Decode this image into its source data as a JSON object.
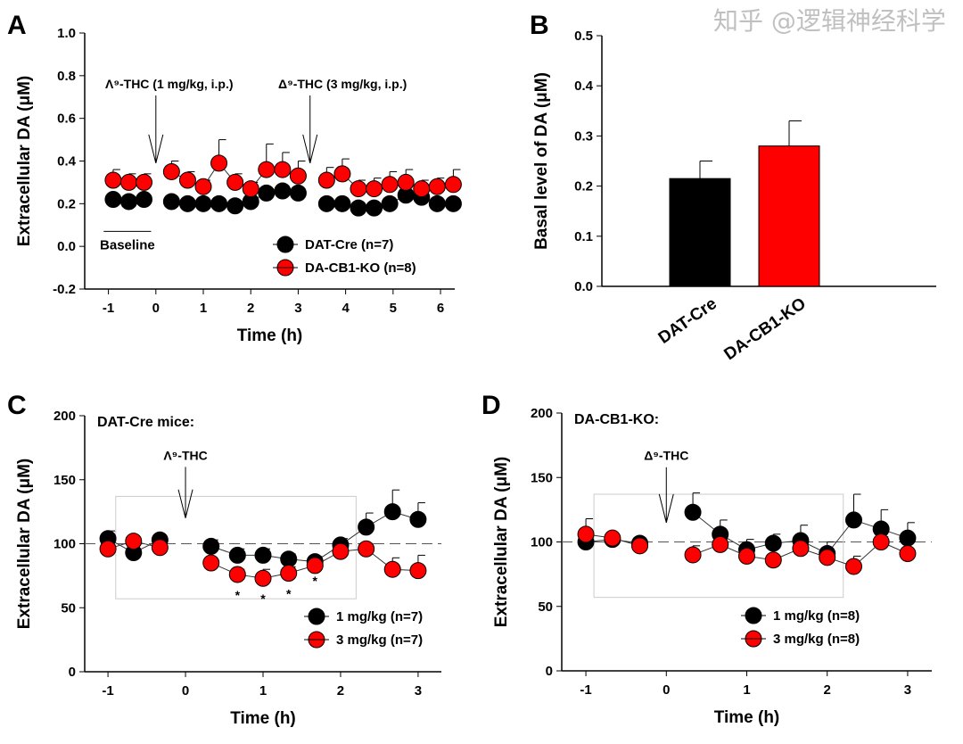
{
  "chart_data": [
    {
      "panel": "A",
      "type": "line",
      "xlabel": "Time (h)",
      "ylabel": "Extracellular DA (μM)",
      "xlim": [
        -1.5,
        6.3
      ],
      "ylim": [
        -0.2,
        1.0
      ],
      "xticks": [
        -1,
        0,
        1,
        2,
        3,
        4,
        5,
        6
      ],
      "yticks": [
        -0.2,
        0.0,
        0.2,
        0.4,
        0.6,
        0.8,
        1.0
      ],
      "annotations": [
        {
          "text": "Λ9-THC (1 mg/kg, i.p.)",
          "x": 0
        },
        {
          "text": "Δ9-THC (3 mg/kg, i.p.)",
          "x": 3.25
        },
        {
          "text": "Baseline"
        }
      ],
      "x": [
        -0.9,
        -0.57,
        -0.25,
        0.33,
        0.67,
        1,
        1.33,
        1.67,
        2,
        2.33,
        2.67,
        3,
        3.6,
        3.93,
        4.27,
        4.6,
        4.93,
        5.27,
        5.6,
        5.93,
        6.27
      ],
      "segments": [
        [
          0,
          3
        ],
        [
          3,
          12
        ],
        [
          12,
          21
        ]
      ],
      "series": [
        {
          "name": "DAT-Cre (n=7)",
          "color": "#000000",
          "values": [
            0.22,
            0.21,
            0.22,
            0.21,
            0.2,
            0.2,
            0.2,
            0.19,
            0.21,
            0.25,
            0.26,
            0.25,
            0.2,
            0.2,
            0.18,
            0.18,
            0.2,
            0.24,
            0.23,
            0.2,
            0.2
          ],
          "err": [
            0.02,
            0.02,
            0.02,
            0.02,
            0.02,
            0.02,
            0.02,
            0.02,
            0.02,
            0.02,
            0.02,
            0.02,
            0.02,
            0.02,
            0.02,
            0.02,
            0.02,
            0.02,
            0.02,
            0.02,
            0.02
          ]
        },
        {
          "name": "DA-CB1-KO (n=8)",
          "color": "#ff0000",
          "values": [
            0.31,
            0.3,
            0.3,
            0.35,
            0.31,
            0.28,
            0.39,
            0.3,
            0.27,
            0.36,
            0.36,
            0.33,
            0.31,
            0.34,
            0.27,
            0.27,
            0.29,
            0.3,
            0.27,
            0.28,
            0.29
          ],
          "err": [
            0.05,
            0.04,
            0.04,
            0.05,
            0.04,
            0.03,
            0.11,
            0.04,
            0.03,
            0.12,
            0.08,
            0.07,
            0.06,
            0.07,
            0.04,
            0.05,
            0.06,
            0.06,
            0.04,
            0.04,
            0.07
          ]
        }
      ],
      "legend": "bottom-right"
    },
    {
      "panel": "B",
      "type": "bar",
      "xlabel": "",
      "ylabel": "Basal level of DA (μM)",
      "ylim": [
        0,
        0.5
      ],
      "yticks": [
        0.0,
        0.1,
        0.2,
        0.3,
        0.4,
        0.5
      ],
      "categories": [
        "DAT-Cre",
        "DA-CB1-KO"
      ],
      "values": [
        0.215,
        0.28
      ],
      "err": [
        0.035,
        0.05
      ],
      "colors": [
        "#000000",
        "#ff0000"
      ]
    },
    {
      "panel": "C",
      "type": "line",
      "title": "DAT-Cre mice:",
      "xlabel": "Time (h)",
      "ylabel": "Extracellular DA (μM)",
      "xlim": [
        -1.3,
        3.3
      ],
      "ylim": [
        0,
        200
      ],
      "xticks": [
        -1,
        0,
        1,
        2,
        3
      ],
      "yticks": [
        0,
        50,
        100,
        150,
        200
      ],
      "annotations": [
        {
          "text": "Λ9-THC",
          "x": 0
        }
      ],
      "significance": [
        "*",
        "*",
        "*",
        "*"
      ],
      "x": [
        -1,
        -0.67,
        -0.33,
        0.33,
        0.67,
        1,
        1.33,
        1.67,
        2,
        2.33,
        2.67,
        3
      ],
      "segments": [
        [
          0,
          3
        ],
        [
          3,
          12
        ]
      ],
      "series": [
        {
          "name": "1 mg/kg (n=7)",
          "color": "#000000",
          "values": [
            104,
            93,
            103,
            98,
            91,
            91,
            88,
            86,
            99,
            113,
            125,
            119
          ],
          "err": [
            6,
            3,
            2,
            5,
            5,
            5,
            4,
            4,
            5,
            11,
            17,
            13
          ]
        },
        {
          "name": "3 mg/kg (n=7)",
          "color": "#ff0000",
          "values": [
            96,
            102,
            97,
            85,
            76,
            73,
            77,
            83,
            94,
            96,
            80,
            79
          ],
          "err": [
            3,
            3,
            3,
            3,
            4,
            7,
            5,
            3,
            3,
            4,
            9,
            12
          ]
        }
      ],
      "legend": "bottom-right"
    },
    {
      "panel": "D",
      "type": "line",
      "title": "DA-CB1-KO:",
      "xlabel": "Time (h)",
      "ylabel": "Extracellular DA (μM)",
      "xlim": [
        -1.3,
        3.3
      ],
      "ylim": [
        0,
        200
      ],
      "xticks": [
        -1,
        0,
        1,
        2,
        3
      ],
      "yticks": [
        0,
        50,
        100,
        150,
        200
      ],
      "annotations": [
        {
          "text": "Δ9-THC",
          "x": 0
        }
      ],
      "x": [
        -1,
        -0.67,
        -0.33,
        0.33,
        0.67,
        1,
        1.33,
        1.67,
        2,
        2.33,
        2.67,
        3
      ],
      "segments": [
        [
          0,
          3
        ],
        [
          3,
          12
        ]
      ],
      "series": [
        {
          "name": "1 mg/kg (n=8)",
          "color": "#000000",
          "values": [
            100,
            102,
            99,
            123,
            106,
            94,
            99,
            101,
            91,
            117,
            110,
            103
          ],
          "err": [
            3,
            3,
            2,
            15,
            11,
            8,
            7,
            12,
            9,
            20,
            15,
            12
          ]
        },
        {
          "name": "3 mg/kg (n=8)",
          "color": "#ff0000",
          "values": [
            106,
            103,
            97,
            90,
            98,
            89,
            86,
            95,
            88,
            81,
            100,
            91
          ],
          "err": [
            12,
            3,
            2,
            7,
            4,
            4,
            3,
            4,
            3,
            8,
            4,
            3
          ]
        }
      ],
      "legend": "bottom-right"
    }
  ],
  "labels": {
    "A": "A",
    "B": "B",
    "C": "C",
    "D": "D",
    "watermark": "知乎 @逻辑神经科学"
  }
}
